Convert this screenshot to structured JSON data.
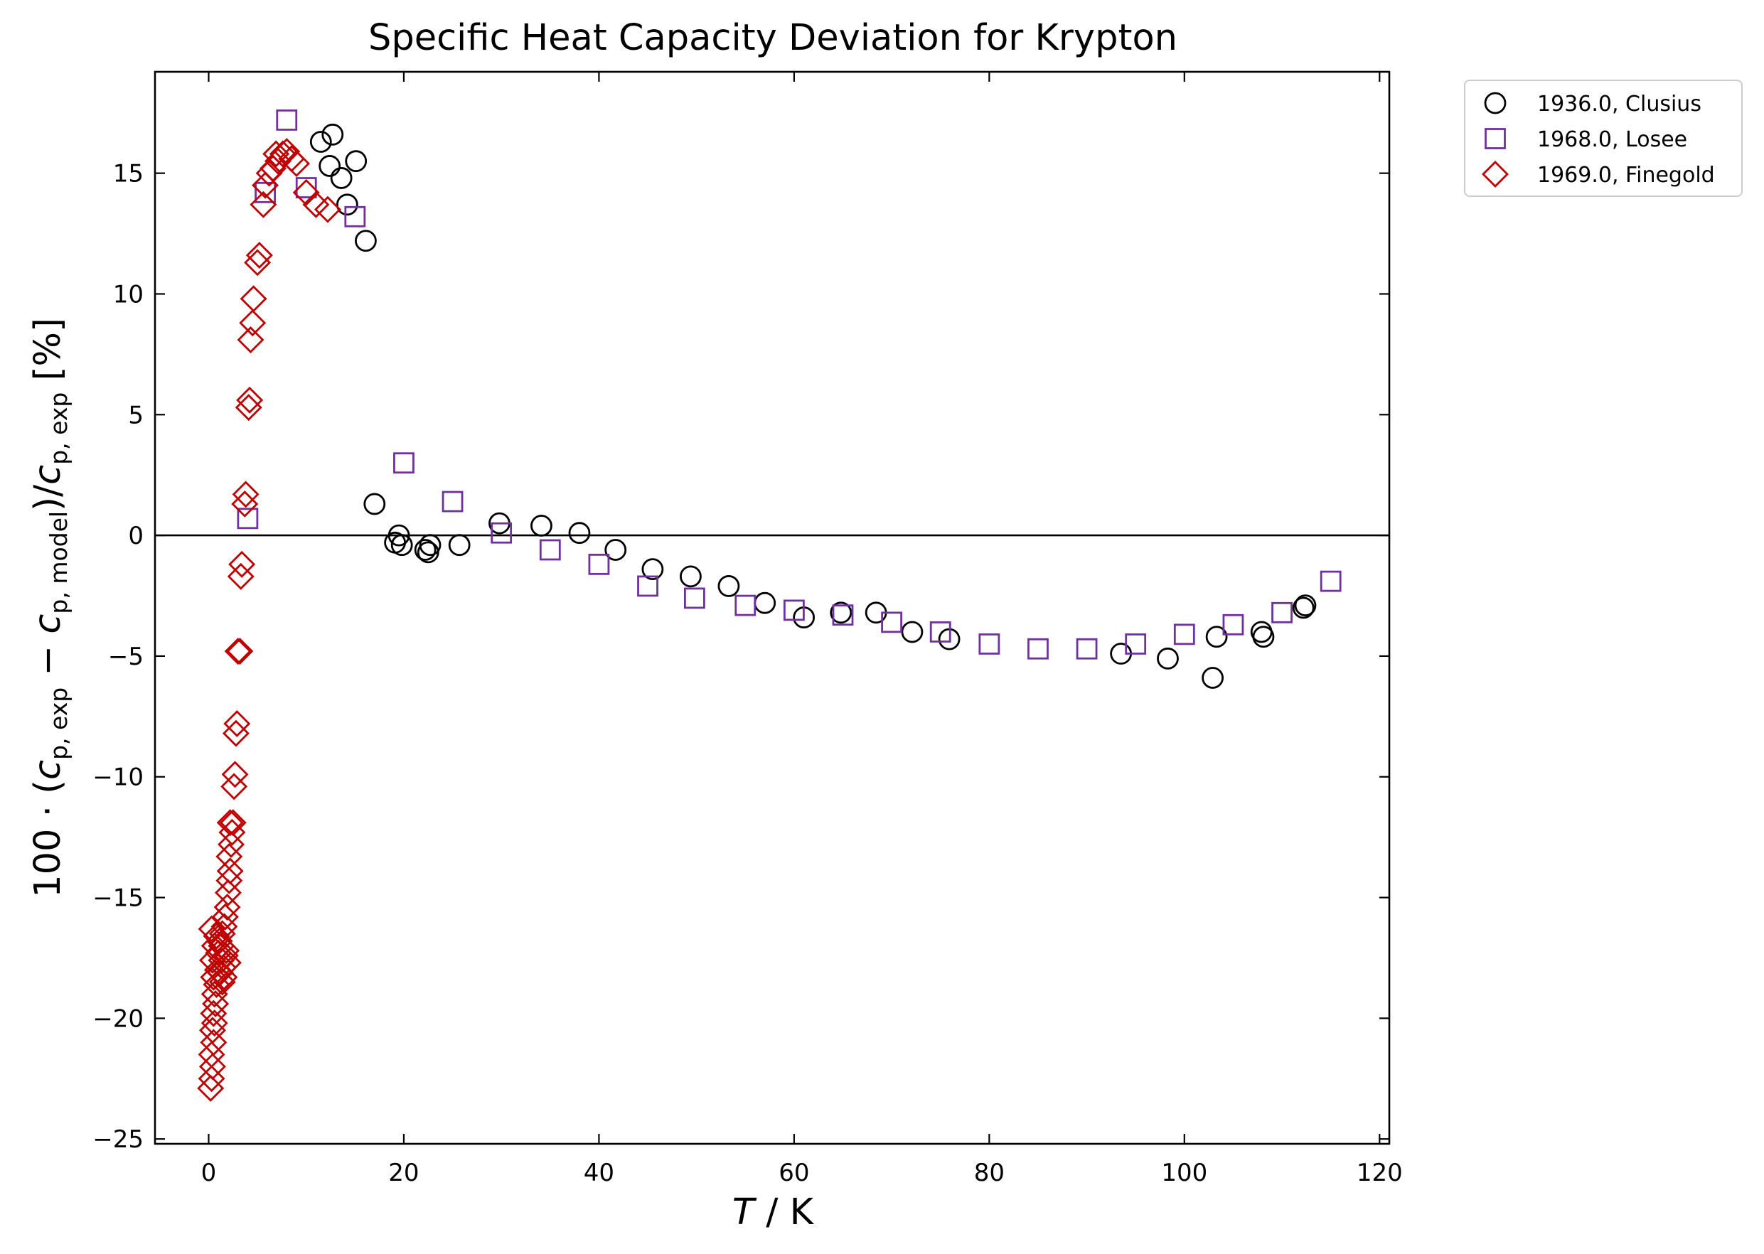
{
  "chart_data": {
    "type": "scatter",
    "title": "Specific Heat Capacity Deviation for Krypton",
    "xlabel_italic": "T",
    "xlabel_rest": " / K",
    "ylabel": {
      "prefix": "100 · (",
      "c1": "c",
      "sub1": "p, exp",
      "minus": " − ",
      "c2": "c",
      "sub2": "p, model",
      "mid": ")/",
      "c3": "c",
      "sub3": "p, exp",
      "suffix": " [%]"
    },
    "xlim": [
      -5.5,
      121
    ],
    "ylim": [
      -25.2,
      19.2
    ],
    "xticks": [
      0,
      20,
      40,
      60,
      80,
      100,
      120
    ],
    "yticks": [
      -25,
      -20,
      -15,
      -10,
      -5,
      0,
      5,
      10,
      15
    ],
    "ytick_labels": [
      "−25",
      "−20",
      "−15",
      "−10",
      "−5",
      "0",
      "5",
      "10",
      "15"
    ],
    "grid": false,
    "zero_line": true,
    "legend_position": "outside-top-right",
    "series": [
      {
        "name": "1936.0, Clusius",
        "marker": "circle",
        "color": "#000000",
        "points": [
          [
            11.5,
            16.3
          ],
          [
            12.7,
            16.6
          ],
          [
            12.4,
            15.3
          ],
          [
            13.6,
            14.8
          ],
          [
            15.1,
            15.5
          ],
          [
            14.2,
            13.7
          ],
          [
            16.1,
            12.2
          ],
          [
            17.0,
            1.3
          ],
          [
            19.5,
            0.0
          ],
          [
            19.1,
            -0.3
          ],
          [
            19.8,
            -0.4
          ],
          [
            22.2,
            -0.6
          ],
          [
            22.5,
            -0.7
          ],
          [
            22.7,
            -0.4
          ],
          [
            25.7,
            -0.4
          ],
          [
            29.8,
            0.5
          ],
          [
            34.1,
            0.4
          ],
          [
            38.0,
            0.1
          ],
          [
            41.7,
            -0.6
          ],
          [
            45.5,
            -1.4
          ],
          [
            49.4,
            -1.7
          ],
          [
            53.3,
            -2.1
          ],
          [
            57.0,
            -2.8
          ],
          [
            61.0,
            -3.4
          ],
          [
            64.8,
            -3.2
          ],
          [
            68.4,
            -3.2
          ],
          [
            72.1,
            -4.0
          ],
          [
            75.9,
            -4.3
          ],
          [
            93.5,
            -4.9
          ],
          [
            98.3,
            -5.1
          ],
          [
            102.9,
            -5.9
          ],
          [
            103.3,
            -4.2
          ],
          [
            107.9,
            -4.0
          ],
          [
            108.1,
            -4.2
          ],
          [
            112.2,
            -3.0
          ],
          [
            112.4,
            -2.9
          ]
        ]
      },
      {
        "name": "1968.0, Losee",
        "marker": "square",
        "color": "#7030a0",
        "points": [
          [
            4.0,
            0.7
          ],
          [
            5.8,
            14.2
          ],
          [
            8.0,
            17.2
          ],
          [
            10.0,
            14.4
          ],
          [
            15.0,
            13.2
          ],
          [
            20.0,
            3.0
          ],
          [
            25.0,
            1.4
          ],
          [
            30.0,
            0.1
          ],
          [
            35.0,
            -0.6
          ],
          [
            40.0,
            -1.2
          ],
          [
            45.0,
            -2.1
          ],
          [
            49.8,
            -2.6
          ],
          [
            55.0,
            -2.9
          ],
          [
            60.0,
            -3.1
          ],
          [
            65.0,
            -3.3
          ],
          [
            70.0,
            -3.6
          ],
          [
            75.0,
            -4.0
          ],
          [
            80.0,
            -4.5
          ],
          [
            85.0,
            -4.7
          ],
          [
            90.0,
            -4.7
          ],
          [
            95.0,
            -4.5
          ],
          [
            100.0,
            -4.1
          ],
          [
            105.0,
            -3.7
          ],
          [
            110.0,
            -3.2
          ],
          [
            115.0,
            -1.9
          ]
        ]
      },
      {
        "name": "1969.0, Finegold",
        "marker": "diamond",
        "color": "#c00000",
        "points": [
          [
            0.2,
            -22.9
          ],
          [
            0.3,
            -22.5
          ],
          [
            0.4,
            -22.0
          ],
          [
            0.3,
            -21.5
          ],
          [
            0.5,
            -21.0
          ],
          [
            0.4,
            -20.5
          ],
          [
            0.6,
            -20.2
          ],
          [
            0.5,
            -19.8
          ],
          [
            0.7,
            -19.4
          ],
          [
            0.6,
            -19.0
          ],
          [
            0.8,
            -18.6
          ],
          [
            0.5,
            -18.3
          ],
          [
            0.9,
            -18.0
          ],
          [
            0.4,
            -17.6
          ],
          [
            1.0,
            -17.3
          ],
          [
            0.6,
            -17.0
          ],
          [
            1.1,
            -16.8
          ],
          [
            0.3,
            -16.3
          ],
          [
            0.8,
            -16.6
          ],
          [
            1.2,
            -18.1
          ],
          [
            1.3,
            -17.6
          ],
          [
            1.4,
            -18.5
          ],
          [
            1.5,
            -17.9
          ],
          [
            1.6,
            -18.3
          ],
          [
            1.7,
            -17.4
          ],
          [
            1.3,
            -17.0
          ],
          [
            1.4,
            -16.5
          ],
          [
            1.6,
            -16.2
          ],
          [
            1.8,
            -17.2
          ],
          [
            2.0,
            -17.7
          ],
          [
            1.7,
            -15.8
          ],
          [
            1.9,
            -15.4
          ],
          [
            2.0,
            -14.8
          ],
          [
            2.1,
            -14.3
          ],
          [
            2.2,
            -13.9
          ],
          [
            2.1,
            -13.3
          ],
          [
            2.3,
            -12.8
          ],
          [
            2.4,
            -12.3
          ],
          [
            2.2,
            -11.9
          ],
          [
            2.5,
            -11.9
          ],
          [
            2.6,
            -10.4
          ],
          [
            2.7,
            -9.9
          ],
          [
            2.8,
            -8.2
          ],
          [
            2.9,
            -7.8
          ],
          [
            3.0,
            -4.8
          ],
          [
            3.2,
            -4.8
          ],
          [
            3.3,
            -1.7
          ],
          [
            3.4,
            -1.2
          ],
          [
            3.7,
            1.3
          ],
          [
            3.8,
            1.7
          ],
          [
            4.1,
            5.3
          ],
          [
            4.2,
            5.6
          ],
          [
            4.3,
            8.1
          ],
          [
            4.5,
            8.8
          ],
          [
            4.6,
            9.8
          ],
          [
            5.0,
            11.3
          ],
          [
            5.2,
            11.6
          ],
          [
            5.6,
            13.7
          ],
          [
            5.8,
            14.5
          ],
          [
            6.2,
            15.0
          ],
          [
            6.6,
            15.2
          ],
          [
            7.1,
            15.5
          ],
          [
            7.6,
            15.8
          ],
          [
            8.0,
            15.9
          ],
          [
            8.5,
            15.6
          ],
          [
            9.0,
            15.4
          ],
          [
            10.0,
            14.2
          ],
          [
            11.0,
            13.7
          ],
          [
            12.2,
            13.5
          ],
          [
            6.9,
            15.8
          ]
        ]
      }
    ]
  }
}
